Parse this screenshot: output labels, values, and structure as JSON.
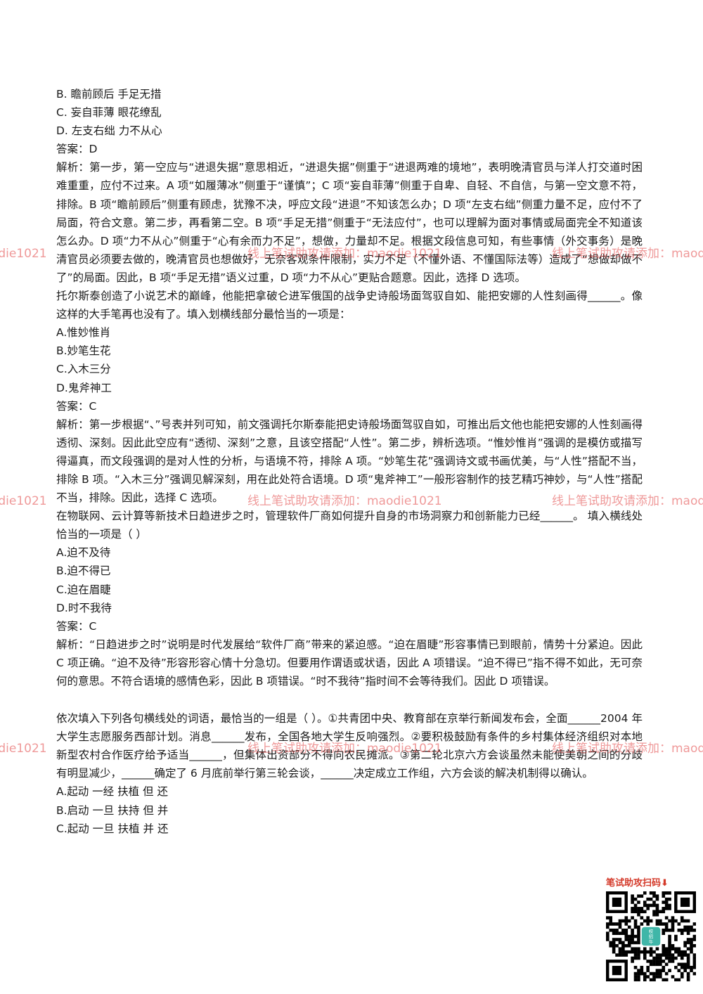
{
  "blocks": [
    {
      "type": "line",
      "text": "B.  瞻前顾后  手足无措"
    },
    {
      "type": "line",
      "text": "C.  妄自菲薄  眼花缭乱"
    },
    {
      "type": "line",
      "text": "D.  左支右绌  力不从心"
    },
    {
      "type": "line",
      "text": "答案：D"
    },
    {
      "type": "para",
      "text": "解析：第一步，第一空应与“进退失据”意思相近，“进退失据”侧重于“进退两难的境地”，表明晚清官员与洋人打交道时困难重重，应付不过来。A 项“如履薄冰”侧重于“谨慎”；C 项“妄自菲薄”侧重于自卑、自轻、不自信，与第一空文意不符，排除。B 项“瞻前顾后”侧重有顾虑，犹豫不决，呼应文段“进退”不知该怎么办；D 项“左支右绌”侧重力量不足，应付不了局面，符合文意。第二步，再看第二空。B 项“手足无措”侧重于“无法应付”，也可以理解为面对事情或局面完全不知道该怎么办。D 项“力不从心”侧重于“心有余而力不足”，想做，力量却不足。根据文段信息可知，有些事情（外交事务）是晚清官员必须要去做的，晚清官员也想做好，无奈客观条件限制，实力不足（不懂外语、不懂国际法等）造成了“想做却做不了”的局面。因此，B 项“手足无措”语义过重，D 项“力不从心”更贴合题意。因此，选择 D 选项。"
    },
    {
      "type": "para",
      "text": "托尔斯泰创造了小说艺术的巅峰，他能把拿破仑进军俄国的战争史诗般场面驾驭自如、能把安娜的人性刻画得______。像这样的大手笔再也没有了。填入划横线部分最恰当的一项是："
    },
    {
      "type": "line",
      "text": "A.惟妙惟肖"
    },
    {
      "type": "line",
      "text": "B.妙笔生花"
    },
    {
      "type": "line",
      "text": "C.入木三分"
    },
    {
      "type": "line",
      "text": "D.鬼斧神工"
    },
    {
      "type": "line",
      "text": "答案：C"
    },
    {
      "type": "para",
      "text": "解析：第一步根据“、”号表并列可知，前文强调托尔斯泰能把史诗般场面驾驭自如，可推出后文他也能把安娜的人性刻画得透彻、深刻。因此此空应有“透彻、深刻”之意，且该空搭配“人性”。第二步，辨析选项。“惟妙惟肖”强调的是模仿或描写得逼真，而文段强调的是对人性的分析，与语境不符，排除 A 项。“妙笔生花”强调诗文或书画优美，与“人性”搭配不当，排除 B 项。“入木三分”强调见解深刻，用在此处符合语境。D 项“鬼斧神工”一般形容制作的技艺精巧神妙，与“人性”搭配不当，排除。因此，选择 C 选项。"
    },
    {
      "type": "para",
      "text": "在物联网、云计算等新技术日趋进步之时，管理软件厂商如何提升自身的市场洞察力和创新能力已经______。 填入横线处恰当的一项是（    ）"
    },
    {
      "type": "line",
      "text": "A.迫不及待"
    },
    {
      "type": "line",
      "text": "B.迫不得已"
    },
    {
      "type": "line",
      "text": "C.迫在眉睫"
    },
    {
      "type": "line",
      "text": "D.时不我待"
    },
    {
      "type": "line",
      "text": "答案：C"
    },
    {
      "type": "para",
      "text": "解析：“日趋进步之时”说明是时代发展给“软件厂商”带来的紧迫感。“迫在眉睫”形容事情已到眼前，情势十分紧迫。因此 C 项正确。“迫不及待”形容形容心情十分急切。但要用作谓语或状语，因此 A 项错误。“迫不得已”指不得不如此，无可奈何的意思。不符合语境的感情色彩，因此 B 项错误。“时不我待”指时间不会等待我们。因此 D 项错误。"
    },
    {
      "type": "gap",
      "text": ""
    },
    {
      "type": "para",
      "text": "依次填入下列各句横线处的词语，最恰当的一组是（    ）。①共青团中央、教育部在京举行新闻发布会，全面______2004 年大学生志愿服务西部计划。消息______发布，全国各地大学生反响强烈。②要积极鼓励有条件的乡村集体经济组织对本地新型农村合作医疗给予适当______，但集体出资部分不得向农民摊派。③第二轮北京六方会谈虽然未能使美朝之间的分歧有明显减少，______确定了 6 月底前举行第三轮会谈，______决定成立工作组，六方会谈的解决机制得以确认。"
    },
    {
      "type": "line",
      "text": "A.起动  一经  扶植  但  还"
    },
    {
      "type": "line",
      "text": "B.启动  一旦  扶持  但  并"
    },
    {
      "type": "line",
      "text": "C.起动  一旦  扶植  并  还"
    }
  ],
  "watermark": "线上笔试助攻请添加：maodie1021",
  "qr_caption": "笔试助攻扫码⬇",
  "qr_center_label": "校\n招\n牛"
}
